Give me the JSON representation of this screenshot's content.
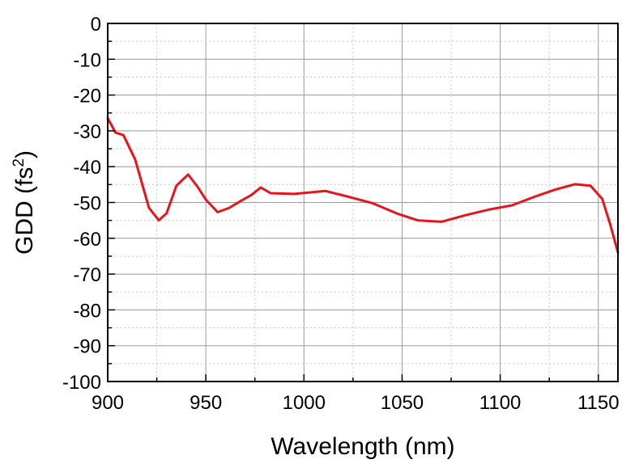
{
  "chart_data": {
    "type": "line",
    "title": "",
    "xlabel": "Wavelength (nm)",
    "ylabel": {
      "main": "GDD (fs",
      "superscript": "2",
      "close": ")"
    },
    "xlim": [
      900,
      1160
    ],
    "ylim": [
      -100,
      0
    ],
    "xticks": [
      900,
      950,
      1000,
      1050,
      1100,
      1150
    ],
    "yticks": [
      0,
      -10,
      -20,
      -30,
      -40,
      -50,
      -60,
      -70,
      -80,
      -90,
      -100
    ],
    "xtick_labels": [
      "900",
      "950",
      "1000",
      "1050",
      "1100",
      "1150"
    ],
    "ytick_labels": [
      "0",
      "-10",
      "-20",
      "-30",
      "-40",
      "-50",
      "-60",
      "-70",
      "-80",
      "-90",
      "-100"
    ],
    "grid": true,
    "legend": "none",
    "series": [
      {
        "color": "#e8141c",
        "x": [
          900,
          904,
          908,
          914,
          921,
          926,
          930,
          935,
          941,
          946,
          950,
          956,
          962,
          968,
          973,
          978,
          983,
          995,
          1011,
          1022,
          1035,
          1048,
          1058,
          1070,
          1082,
          1094,
          1106,
          1118,
          1128,
          1138,
          1146,
          1152,
          1156,
          1160
        ],
        "y": [
          -26.5,
          -30.5,
          -31.2,
          -38,
          -51.5,
          -55,
          -53,
          -45.3,
          -42.2,
          -45.8,
          -49.2,
          -52.7,
          -51.5,
          -49.5,
          -48,
          -45.8,
          -47.4,
          -47.6,
          -46.8,
          -48.3,
          -50.2,
          -53.2,
          -55,
          -55.4,
          -53.6,
          -52,
          -50.8,
          -48.3,
          -46.4,
          -44.9,
          -45.3,
          -49,
          -56,
          -64
        ]
      }
    ]
  }
}
